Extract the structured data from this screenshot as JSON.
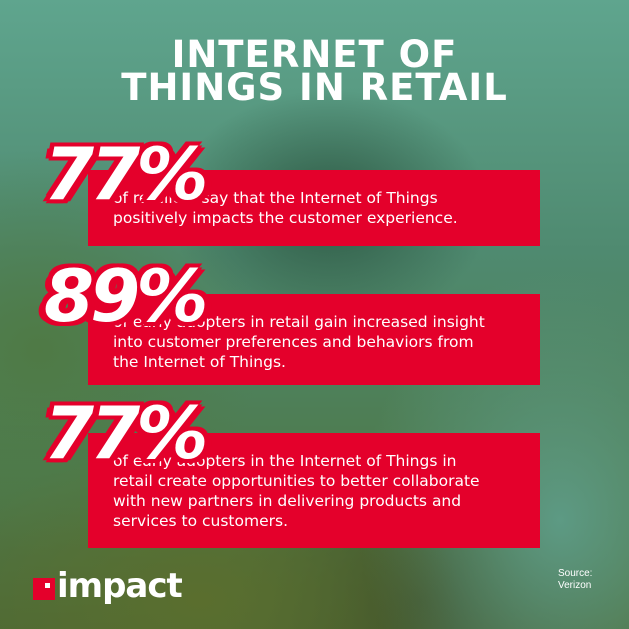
{
  "title": {
    "line1": "INTERNET OF",
    "line2": "THINGS IN RETAIL"
  },
  "stats": [
    {
      "value": "77%",
      "lines": [
        "of retailers say that the Internet of Things",
        "positively impacts the customer experience."
      ]
    },
    {
      "value": "89%",
      "lines": [
        "of early adopters in retail gain increased insight",
        "into customer preferences and behaviors from",
        "the Internet of Things."
      ]
    },
    {
      "value": "77%",
      "lines": [
        "of early adopters in the Internet of Things in",
        "retail create opportunities to better collaborate",
        "with new partners in delivering products and",
        "services to customers."
      ]
    }
  ],
  "logo": {
    "text": "impact"
  },
  "source": {
    "label": "Source:",
    "name": "Verizon"
  },
  "colors": {
    "accent": "#e4002b",
    "text": "#ffffff"
  }
}
